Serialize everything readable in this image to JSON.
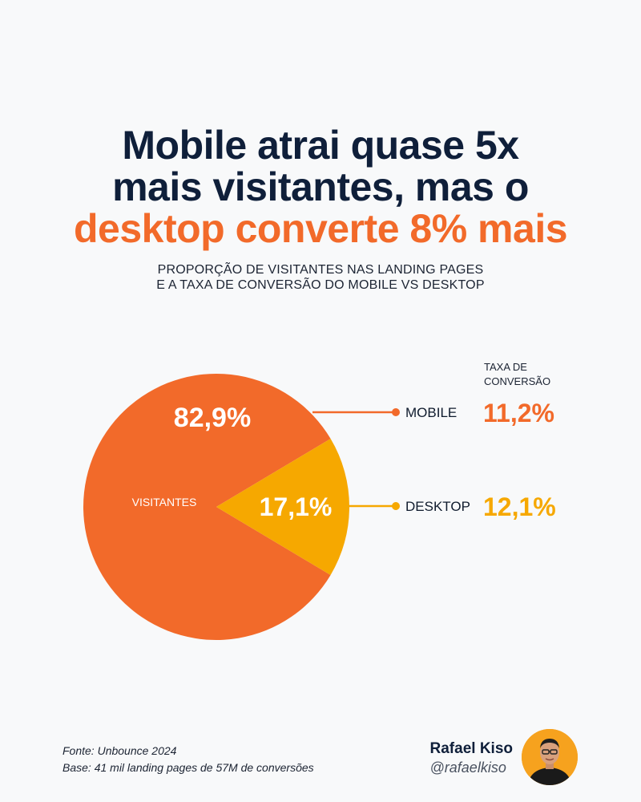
{
  "title": {
    "line1": "Mobile atrai quase 5x",
    "line2": "mais visitantes, mas o",
    "line3": "desktop converte 8% mais"
  },
  "subtitle": {
    "line1": "PROPORÇÃO DE VISITANTES NAS LANDING PAGES",
    "line2": "E A TAXA DE CONVERSÃO DO MOBILE VS DESKTOP"
  },
  "chart_data": {
    "type": "pie",
    "center_label": "VISITANTES",
    "rate_header": [
      "TAXA DE",
      "CONVERSÃO"
    ],
    "series": [
      {
        "name": "MOBILE",
        "share": 82.9,
        "share_label": "82,9%",
        "rate_label": "11,2%",
        "color": "#f26a2a"
      },
      {
        "name": "DESKTOP",
        "share": 17.1,
        "share_label": "17,1%",
        "rate_label": "12,1%",
        "color": "#f6a800"
      }
    ]
  },
  "footer": {
    "source": "Fonte:   Unbounce 2024",
    "base": "Base: 41 mil landing pages de 57M de conversões"
  },
  "author": {
    "name": "Rafael Kiso",
    "handle": "@rafaelkiso"
  },
  "colors": {
    "title": "#0f1f3a",
    "accent": "#f26a2a",
    "mobile": "#f26a2a",
    "desktop": "#f6a800"
  }
}
